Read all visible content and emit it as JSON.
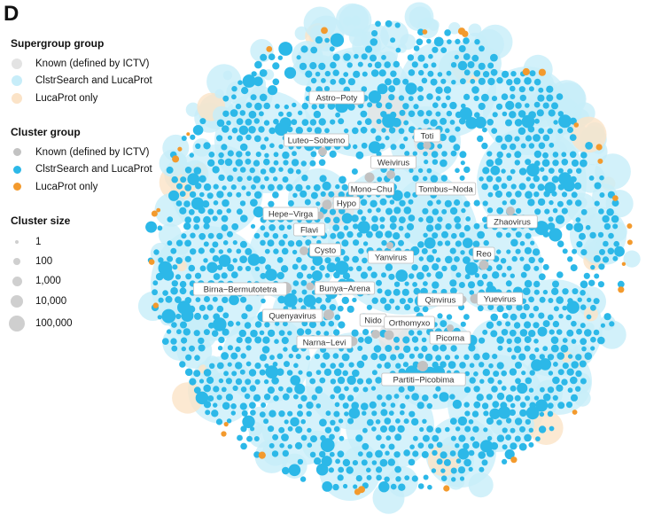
{
  "panel_letter": "D",
  "legend": {
    "supergroup": {
      "title": "Supergroup group",
      "items": [
        {
          "label": "Known (defined by ICTV)",
          "color": "#e3e3e3"
        },
        {
          "label": "ClstrSearch and LucaProt",
          "color": "#c7edf9"
        },
        {
          "label": "LucaProt only",
          "color": "#fbe3c7"
        }
      ]
    },
    "cluster": {
      "title": "Cluster group",
      "items": [
        {
          "label": "Known (defined by ICTV)",
          "color": "#c2c2c2"
        },
        {
          "label": "ClstrSearch and LucaProt",
          "color": "#2cb8e8"
        },
        {
          "label": "LucaProt only",
          "color": "#f39a2d"
        }
      ]
    },
    "size": {
      "title": "Cluster size",
      "items": [
        {
          "label": "1"
        },
        {
          "label": "100"
        },
        {
          "label": "1,000"
        },
        {
          "label": "10,000"
        },
        {
          "label": "100,000"
        }
      ]
    }
  },
  "supergroup_labels": [
    "Astro−Poty",
    "Luteo−Sobemo",
    "Toti",
    "Weivirus",
    "Mono−Chu",
    "Tombus−Noda",
    "Hypo",
    "Hepe−Virga",
    "Zhaovirus",
    "Flavi",
    "Cysto",
    "Reo",
    "Yanvirus",
    "Birna−Bermutotetra",
    "Bunya−Arena",
    "Qinvirus",
    "Yuevirus",
    "Quenyavirus",
    "Nido",
    "Orthomyxo",
    "Narna−Levi",
    "Picorna",
    "Partiti−Picobima"
  ]
}
